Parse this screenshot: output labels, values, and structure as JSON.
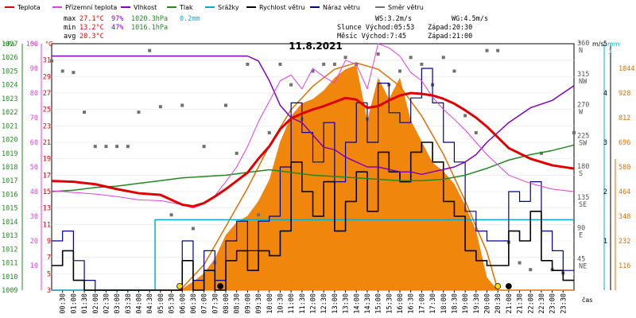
{
  "chart_data": {
    "type": "line",
    "title": "11.8.2021",
    "legend": [
      {
        "name": "Teplota",
        "color": "#e00000"
      },
      {
        "name": "Přízemní teplota",
        "color": "#e040e0"
      },
      {
        "name": "Vlhkost",
        "color": "#8000c0"
      },
      {
        "name": "Tlak",
        "color": "#228822"
      },
      {
        "name": "Srážky",
        "color": "#00b0d0"
      },
      {
        "name": "Rychlost větru",
        "color": "#000000"
      },
      {
        "name": "Náraz větru",
        "color": "#000090"
      },
      {
        "name": "Směr větru",
        "color": "#707070"
      }
    ],
    "stats": {
      "max": {
        "label": "max",
        "temp": "27.1°C",
        "hum": "97%",
        "press": "1020.3hPa",
        "rain": "0.2mm"
      },
      "min": {
        "label": "min",
        "temp": "13.2°C",
        "hum": "47%",
        "press": "1016.1hPa"
      },
      "avg": {
        "label": "avg",
        "temp": "20.3°C"
      },
      "ws": "WS:3.2m/s",
      "wg": "WG:4.5m/s",
      "sun": "Slunce Východ:05:53",
      "sunset": "Západ:20:30",
      "moon": "Měsíc Východ:7:45",
      "moonset": "Západ:21:00"
    },
    "axes": {
      "hpa": {
        "label": "hPa",
        "ticks": [
          "1009",
          "1010",
          "1011",
          "1012",
          "1013",
          "1014",
          "1015",
          "1016",
          "1017",
          "1018",
          "1019",
          "1020",
          "1021",
          "1022",
          "1023",
          "1024",
          "1025",
          "1026",
          "1027"
        ],
        "range": [
          1009,
          1027
        ]
      },
      "percent": {
        "label": "%",
        "ticks": [
          "10",
          "20",
          "30",
          "40",
          "50",
          "60",
          "70",
          "80",
          "90",
          "100"
        ],
        "range": [
          0,
          100
        ]
      },
      "celsius": {
        "label": "°C",
        "ticks": [
          "3",
          "5",
          "7",
          "9",
          "11",
          "13",
          "15",
          "17",
          "19",
          "21",
          "23",
          "25",
          "27",
          "29",
          "31"
        ],
        "range": [
          3,
          33
        ]
      },
      "direction": {
        "label": "°",
        "ticks": [
          {
            "deg": "45",
            "dir": "NE"
          },
          {
            "deg": "90",
            "dir": "E"
          },
          {
            "deg": "135",
            "dir": "SE"
          },
          {
            "deg": "180",
            "dir": "S"
          },
          {
            "deg": "225",
            "dir": "SW"
          },
          {
            "deg": "270",
            "dir": "W"
          },
          {
            "deg": "315",
            "dir": "NW"
          },
          {
            "deg": "360",
            "dir": "N"
          }
        ],
        "range": [
          0,
          360
        ]
      },
      "wind": {
        "label": "m/s",
        "ticks": [
          "1",
          "2",
          "3",
          "4",
          "5"
        ],
        "range": [
          0,
          5
        ]
      },
      "rain": {
        "label": "mm",
        "ticks": [
          "1"
        ]
      },
      "solar": {
        "ticks": [
          "116",
          "232",
          "348",
          "464",
          "580",
          "696",
          "812",
          "928",
          "1044"
        ],
        "range": [
          0,
          1160
        ]
      },
      "time": {
        "label": "čas",
        "ticks": [
          "00:30",
          "01:00",
          "01:30",
          "02:00",
          "02:30",
          "03:00",
          "03:30",
          "04:00",
          "04:30",
          "05:00",
          "05:30",
          "06:00",
          "06:30",
          "07:00",
          "07:30",
          "08:00",
          "08:30",
          "09:00",
          "09:30",
          "10:00",
          "10:30",
          "11:00",
          "11:30",
          "12:00",
          "12:30",
          "13:00",
          "13:30",
          "14:00",
          "14:30",
          "15:00",
          "15:30",
          "16:00",
          "16:30",
          "17:00",
          "17:30",
          "18:00",
          "18:30",
          "19:00",
          "19:30",
          "20:00",
          "20:30",
          "21:00",
          "21:30",
          "22:00",
          "22:30",
          "23:00",
          "23:30"
        ]
      }
    },
    "series": {
      "temperature": {
        "name": "Teplota",
        "x": [
          0,
          1,
          2,
          3,
          4,
          5,
          6,
          6.5,
          7,
          7.5,
          8,
          8.5,
          9,
          9.5,
          10,
          10.5,
          11,
          11.5,
          12,
          12.5,
          13,
          13.5,
          14,
          14.5,
          15,
          15.5,
          16,
          16.5,
          17,
          17.5,
          18,
          18.5,
          19,
          19.5,
          20,
          21,
          22,
          23,
          24
        ],
        "y": [
          16.3,
          16.2,
          15.9,
          15.3,
          14.8,
          14.6,
          13.4,
          13.2,
          13.6,
          14.4,
          15.3,
          16.3,
          17.3,
          19.0,
          20.5,
          22.6,
          23.9,
          24.5,
          25.0,
          25.4,
          25.9,
          26.4,
          26.2,
          25.2,
          25.4,
          26.1,
          26.7,
          27.0,
          26.9,
          26.7,
          26.3,
          25.7,
          24.9,
          24.0,
          22.9,
          20.3,
          19.0,
          18.2,
          17.8
        ]
      },
      "ground_temp": {
        "name": "Přízemní teplota",
        "x": [
          0,
          1,
          2,
          3,
          4,
          5,
          6,
          6.5,
          7,
          7.5,
          8,
          8.5,
          9,
          9.5,
          10,
          10.5,
          11,
          11.5,
          12,
          12.5,
          13,
          13.5,
          14,
          14.5,
          15,
          15.5,
          16,
          16.5,
          17,
          17.5,
          18,
          18.5,
          19,
          19.5,
          20,
          21,
          22,
          23,
          24
        ],
        "y": [
          15.1,
          14.9,
          14.7,
          14.4,
          14.0,
          13.9,
          13.4,
          13.0,
          13.5,
          14.5,
          16.2,
          18.0,
          20.5,
          23.5,
          26.0,
          28.5,
          29.2,
          27.5,
          30.0,
          29.0,
          28.2,
          31.0,
          30.5,
          27.5,
          33.0,
          32.5,
          31.5,
          29.5,
          28.5,
          26.5,
          25.0,
          23.8,
          22.5,
          21.0,
          19.5,
          17.0,
          16.0,
          15.3,
          15.0
        ]
      },
      "humidity": {
        "name": "Vlhkost",
        "x": [
          0,
          1,
          2,
          3,
          4,
          5,
          6,
          6.5,
          7,
          7.5,
          8,
          8.5,
          9,
          9.5,
          10,
          10.5,
          11,
          11.5,
          12,
          12.5,
          13,
          13.5,
          14,
          14.5,
          15,
          15.5,
          16,
          16.5,
          17,
          17.5,
          18,
          18.5,
          19,
          19.5,
          20,
          21,
          22,
          23,
          24
        ],
        "y": [
          95,
          95,
          95,
          95,
          95,
          95,
          95,
          95,
          95,
          95,
          95,
          95,
          95,
          93,
          85,
          75,
          70,
          68,
          63,
          58,
          57,
          54,
          52,
          50,
          50,
          49,
          48,
          48,
          47,
          48,
          49,
          50,
          52,
          55,
          60,
          68,
          74,
          77,
          83
        ]
      },
      "pressure": {
        "name": "Tlak",
        "x": [
          0,
          1,
          2,
          3,
          4,
          5,
          6,
          7,
          8,
          9,
          10,
          11,
          12,
          13,
          14,
          15,
          16,
          17,
          18,
          19,
          20,
          21,
          22,
          23,
          24
        ],
        "y": [
          1016.2,
          1016.3,
          1016.5,
          1016.6,
          1016.8,
          1017.0,
          1017.2,
          1017.3,
          1017.4,
          1017.6,
          1017.8,
          1017.6,
          1017.4,
          1017.3,
          1017.2,
          1017.1,
          1017.0,
          1017.0,
          1017.1,
          1017.4,
          1017.9,
          1018.5,
          1018.9,
          1019.2,
          1019.6
        ]
      },
      "rain_total": {
        "name": "Srážky",
        "x": [
          0,
          4.7,
          4.75,
          24
        ],
        "y": [
          0,
          0,
          0.2,
          0.2
        ]
      },
      "wind_speed": {
        "name": "Rychlost větru",
        "x": [
          0,
          0.5,
          1,
          1.5,
          2,
          2.5,
          3,
          3.5,
          4,
          4.5,
          5,
          5.5,
          6,
          6.5,
          7,
          7.5,
          8,
          8.5,
          9,
          9.5,
          10,
          10.5,
          11,
          11.5,
          12,
          12.5,
          13,
          13.5,
          14,
          14.5,
          15,
          15.5,
          16,
          16.5,
          17,
          17.5,
          18,
          18.5,
          19,
          19.5,
          20,
          20.5,
          21,
          21.5,
          22,
          22.5,
          23,
          23.5,
          24
        ],
        "y": [
          0.5,
          0.8,
          0.2,
          0,
          0,
          0,
          0,
          0,
          0,
          0,
          0,
          0,
          0.6,
          0,
          0.4,
          0,
          0.6,
          0.8,
          0.4,
          0.8,
          0.7,
          1.2,
          2.6,
          2.0,
          1.5,
          2.2,
          1.2,
          1.8,
          2.4,
          1.6,
          2.8,
          2.4,
          2.2,
          2.8,
          3.0,
          2.6,
          1.8,
          1.5,
          0.8,
          0.6,
          0.5,
          0.5,
          1.2,
          1.0,
          1.6,
          0.6,
          0.4,
          0.2,
          0.2
        ]
      },
      "wind_gust": {
        "name": "Náraz větru",
        "x": [
          0,
          0.5,
          1,
          1.5,
          2,
          2.5,
          3,
          3.5,
          4,
          4.5,
          5,
          5.5,
          6,
          6.5,
          7,
          7.5,
          8,
          8.5,
          9,
          9.5,
          10,
          10.5,
          11,
          11.5,
          12,
          12.5,
          13,
          13.5,
          14,
          14.5,
          15,
          15.5,
          16,
          16.5,
          17,
          17.5,
          18,
          18.5,
          19,
          19.5,
          20,
          20.5,
          21,
          21.5,
          22,
          22.5,
          23,
          23.5,
          24
        ],
        "y": [
          1.0,
          1.2,
          0.6,
          0.2,
          0,
          0,
          0,
          0,
          0,
          0,
          0,
          0,
          1.0,
          0.2,
          0.8,
          0.2,
          1.0,
          1.4,
          0.8,
          1.4,
          1.5,
          2.5,
          3.8,
          3.2,
          2.6,
          3.4,
          2.2,
          3.0,
          3.8,
          3.0,
          4.2,
          3.6,
          3.4,
          3.9,
          4.5,
          3.8,
          3.0,
          2.6,
          1.6,
          1.2,
          1.0,
          1.0,
          2.0,
          1.8,
          2.2,
          1.2,
          0.8,
          0.4,
          0.4
        ]
      },
      "wind_dir": {
        "name": "Směr větru",
        "x": [
          0,
          0.5,
          1,
          1.5,
          2,
          2.5,
          3,
          3.5,
          4,
          4.5,
          5,
          5.5,
          6,
          6.5,
          7,
          7.5,
          8,
          8.5,
          9,
          9.5,
          10,
          10.5,
          11,
          11.5,
          12,
          12.5,
          13,
          13.5,
          14,
          14.5,
          15,
          15.5,
          16,
          16.5,
          17,
          17.5,
          18,
          18.5,
          19,
          19.5,
          20,
          20.5,
          21,
          21.5,
          22,
          22.5,
          23,
          23.5,
          24
        ],
        "y": [
          335,
          320,
          318,
          260,
          210,
          210,
          210,
          210,
          260,
          350,
          268,
          110,
          270,
          90,
          210,
          40,
          270,
          200,
          330,
          110,
          230,
          330,
          300,
          250,
          320,
          330,
          330,
          340,
          330,
          250,
          345,
          300,
          320,
          340,
          330,
          300,
          340,
          320,
          255,
          230,
          350,
          350,
          70,
          40,
          30,
          200,
          30,
          25,
          230
        ]
      },
      "solar": {
        "name": "",
        "x": [
          0,
          5.9,
          6.5,
          7,
          7.5,
          8,
          8.5,
          9,
          9.5,
          10,
          10.5,
          11,
          11.5,
          12,
          12.5,
          13,
          13.5,
          14,
          14.5,
          15,
          15.5,
          16,
          16.5,
          17,
          17.5,
          18,
          18.5,
          19,
          19.5,
          20,
          20.5,
          24
        ],
        "y": [
          0,
          0,
          40,
          80,
          150,
          260,
          320,
          350,
          420,
          520,
          700,
          820,
          880,
          900,
          940,
          1000,
          1040,
          1060,
          800,
          1000,
          900,
          1000,
          800,
          700,
          600,
          560,
          500,
          400,
          280,
          60,
          0,
          0
        ]
      },
      "solar_theoretical": {
        "name": "",
        "x": [
          0,
          5.9,
          7,
          8,
          9,
          10,
          11,
          12,
          13,
          14,
          15,
          16,
          17,
          18,
          19,
          20,
          20.5,
          24
        ],
        "y": [
          0,
          0,
          120,
          300,
          480,
          680,
          850,
          960,
          1040,
          1070,
          1040,
          960,
          820,
          640,
          420,
          180,
          0,
          0
        ]
      }
    },
    "markers": {
      "sunrise": "05:53",
      "sunset": "20:30",
      "moonrise": "7:45",
      "moonset": "21:00"
    }
  }
}
